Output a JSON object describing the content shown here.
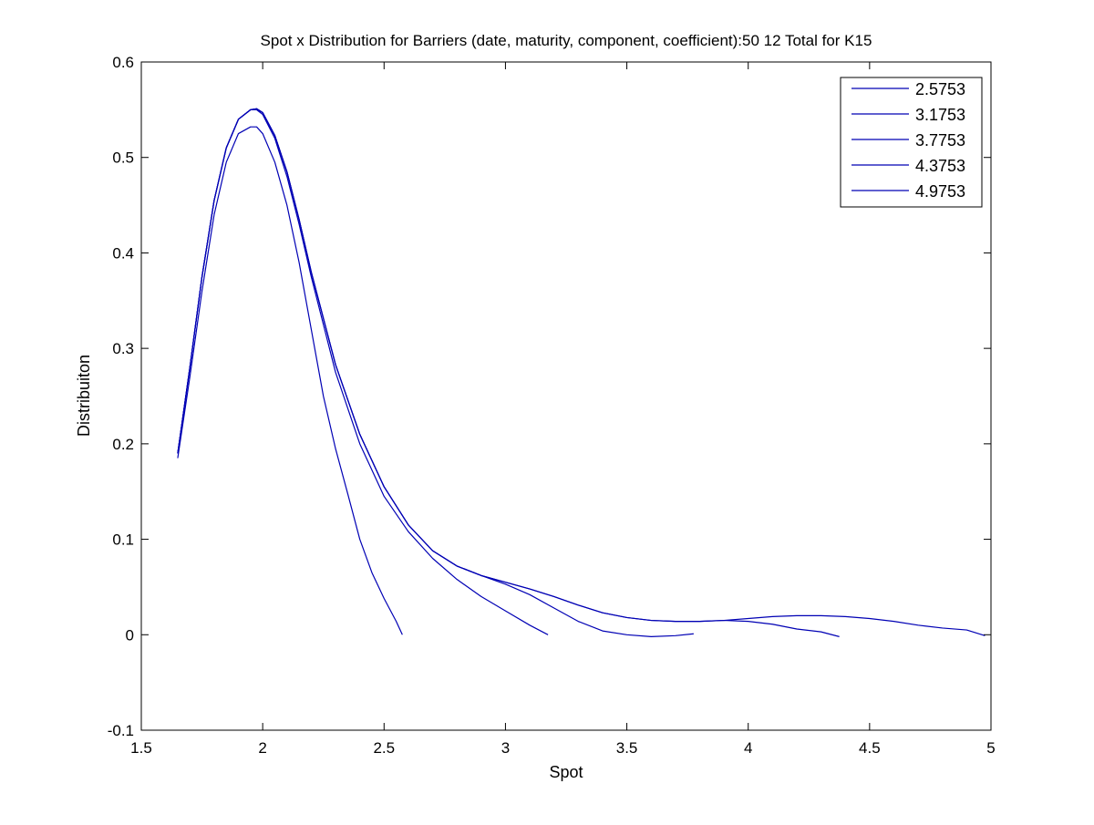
{
  "chart_data": {
    "type": "line",
    "title": "Spot x Distribution for Barriers (date, maturity, component, coefficient):50 12 Total for K15",
    "xlabel": "Spot",
    "ylabel": "Distribuiton",
    "xlim": [
      1.5,
      5
    ],
    "ylim": [
      -0.1,
      0.6
    ],
    "xticks": [
      1.5,
      2,
      2.5,
      3,
      3.5,
      4,
      4.5,
      5
    ],
    "xtick_labels": [
      "1.5",
      "2",
      "2.5",
      "3",
      "3.5",
      "4",
      "4.5",
      "5"
    ],
    "yticks": [
      -0.1,
      0,
      0.1,
      0.2,
      0.3,
      0.4,
      0.5,
      0.6
    ],
    "ytick_labels": [
      "-0.1",
      "0",
      "0.1",
      "0.2",
      "0.3",
      "0.4",
      "0.5",
      "0.6"
    ],
    "grid": false,
    "legend_position": "top-right",
    "line_color": "#0000b4",
    "series": [
      {
        "name": "2.5753",
        "x": [
          1.65,
          1.7,
          1.75,
          1.8,
          1.85,
          1.9,
          1.95,
          1.975,
          2.0,
          2.05,
          2.1,
          2.15,
          2.2,
          2.25,
          2.3,
          2.35,
          2.4,
          2.45,
          2.5,
          2.55,
          2.5753
        ],
        "y": [
          0.185,
          0.27,
          0.36,
          0.44,
          0.495,
          0.525,
          0.532,
          0.532,
          0.525,
          0.495,
          0.45,
          0.39,
          0.32,
          0.25,
          0.195,
          0.148,
          0.1,
          0.065,
          0.038,
          0.014,
          0.0
        ]
      },
      {
        "name": "3.1753",
        "x": [
          1.65,
          1.7,
          1.75,
          1.8,
          1.85,
          1.9,
          1.95,
          1.975,
          2.0,
          2.05,
          2.1,
          2.15,
          2.2,
          2.3,
          2.4,
          2.5,
          2.6,
          2.7,
          2.8,
          2.9,
          3.0,
          3.1,
          3.1753
        ],
        "y": [
          0.19,
          0.28,
          0.375,
          0.455,
          0.51,
          0.54,
          0.55,
          0.55,
          0.545,
          0.52,
          0.48,
          0.43,
          0.375,
          0.275,
          0.2,
          0.145,
          0.108,
          0.08,
          0.058,
          0.04,
          0.025,
          0.01,
          0.0
        ]
      },
      {
        "name": "3.7753",
        "x": [
          1.65,
          1.7,
          1.75,
          1.8,
          1.85,
          1.9,
          1.95,
          1.975,
          2.0,
          2.05,
          2.1,
          2.15,
          2.2,
          2.3,
          2.4,
          2.5,
          2.6,
          2.7,
          2.8,
          2.9,
          3.0,
          3.1,
          3.2,
          3.3,
          3.4,
          3.5,
          3.6,
          3.7,
          3.7753
        ],
        "y": [
          0.19,
          0.28,
          0.375,
          0.455,
          0.51,
          0.54,
          0.55,
          0.551,
          0.547,
          0.523,
          0.485,
          0.435,
          0.38,
          0.283,
          0.21,
          0.155,
          0.115,
          0.088,
          0.072,
          0.062,
          0.053,
          0.042,
          0.028,
          0.014,
          0.004,
          0.0,
          -0.002,
          -0.001,
          0.001
        ]
      },
      {
        "name": "4.3753",
        "x": [
          1.65,
          1.7,
          1.75,
          1.8,
          1.85,
          1.9,
          1.95,
          1.975,
          2.0,
          2.05,
          2.1,
          2.15,
          2.2,
          2.3,
          2.4,
          2.5,
          2.6,
          2.7,
          2.8,
          2.9,
          3.0,
          3.1,
          3.2,
          3.3,
          3.4,
          3.5,
          3.6,
          3.7,
          3.8,
          3.9,
          4.0,
          4.1,
          4.2,
          4.3,
          4.3753
        ],
        "y": [
          0.19,
          0.28,
          0.375,
          0.455,
          0.51,
          0.54,
          0.55,
          0.551,
          0.547,
          0.523,
          0.485,
          0.435,
          0.38,
          0.283,
          0.21,
          0.155,
          0.115,
          0.088,
          0.072,
          0.062,
          0.055,
          0.048,
          0.04,
          0.031,
          0.023,
          0.018,
          0.015,
          0.014,
          0.014,
          0.015,
          0.014,
          0.011,
          0.006,
          0.003,
          -0.002
        ]
      },
      {
        "name": "4.9753",
        "x": [
          1.65,
          1.7,
          1.75,
          1.8,
          1.85,
          1.9,
          1.95,
          1.975,
          2.0,
          2.05,
          2.1,
          2.15,
          2.2,
          2.3,
          2.4,
          2.5,
          2.6,
          2.7,
          2.8,
          2.9,
          3.0,
          3.1,
          3.2,
          3.3,
          3.4,
          3.5,
          3.6,
          3.7,
          3.8,
          3.9,
          4.0,
          4.1,
          4.2,
          4.3,
          4.4,
          4.5,
          4.6,
          4.7,
          4.8,
          4.9,
          4.9753
        ],
        "y": [
          0.19,
          0.28,
          0.375,
          0.455,
          0.51,
          0.54,
          0.55,
          0.551,
          0.547,
          0.523,
          0.485,
          0.435,
          0.38,
          0.283,
          0.21,
          0.155,
          0.115,
          0.088,
          0.072,
          0.062,
          0.055,
          0.048,
          0.04,
          0.031,
          0.023,
          0.018,
          0.015,
          0.014,
          0.014,
          0.015,
          0.017,
          0.019,
          0.02,
          0.02,
          0.019,
          0.017,
          0.014,
          0.01,
          0.007,
          0.005,
          -0.001
        ]
      }
    ]
  }
}
